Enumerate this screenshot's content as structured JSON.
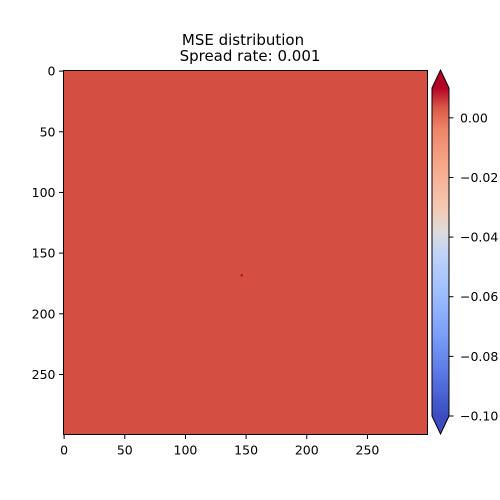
{
  "chart_data": {
    "type": "heatmap",
    "title": "MSE distribution",
    "subtitle": "Spread rate: 0.001",
    "xlabel": "",
    "ylabel": "",
    "x_ticks": [
      0,
      50,
      100,
      150,
      200,
      250
    ],
    "y_ticks": [
      0,
      50,
      100,
      150,
      200,
      250
    ],
    "xlim": [
      0,
      299
    ],
    "ylim": [
      299,
      0
    ],
    "field_value": 0.0,
    "field_color": "#d44e41",
    "anomaly": {
      "x": 146,
      "y": 168,
      "value": 0.01,
      "color": "#b40426"
    },
    "colorbar": {
      "colormap": "coolwarm",
      "range": [
        -0.1,
        0.01
      ],
      "extend": "both",
      "ticks": [
        0.0,
        -0.02,
        -0.04,
        -0.06,
        -0.08,
        -0.1
      ],
      "tick_labels": [
        "0.00",
        "−0.02",
        "−0.04",
        "−0.06",
        "−0.08",
        "−0.10"
      ],
      "low_color": "#3b4cc0",
      "high_color": "#b40426"
    }
  }
}
